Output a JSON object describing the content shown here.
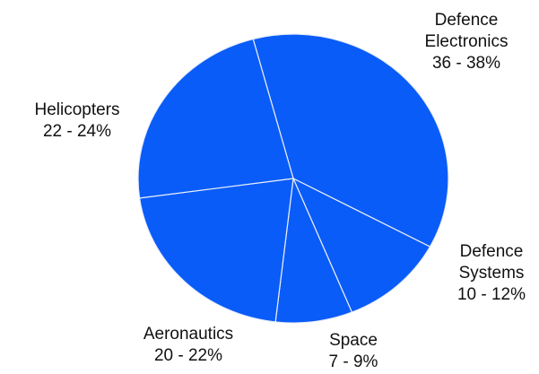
{
  "chart_data": {
    "type": "pie",
    "title": "",
    "slices": [
      {
        "name": "Defence Electronics",
        "range": "36 - 38%",
        "value": 37,
        "label_lines": [
          "Defence",
          "Electronics",
          "36 - 38%"
        ]
      },
      {
        "name": "Defence Systems",
        "range": "10 - 12%",
        "value": 11,
        "label_lines": [
          "Defence",
          "Systems",
          "10 - 12%"
        ]
      },
      {
        "name": "Space",
        "range": "7 - 9%",
        "value": 8,
        "label_lines": [
          "Space",
          "7 - 9%"
        ]
      },
      {
        "name": "Aeronautics",
        "range": "20 - 22%",
        "value": 21,
        "label_lines": [
          "Aeronautics",
          "20 - 22%"
        ]
      },
      {
        "name": "Helicopters",
        "range": "22 - 24%",
        "value": 23,
        "label_lines": [
          "Helicopters",
          "22 - 24%"
        ]
      }
    ],
    "slice_color": "#0a5cf8",
    "edge_color": "#e8eef8",
    "legend": "none"
  }
}
